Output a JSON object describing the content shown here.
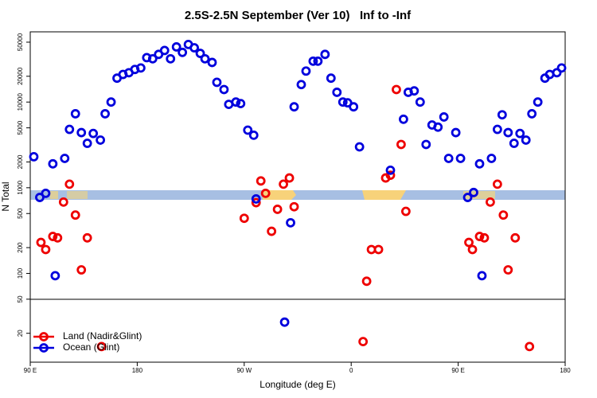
{
  "chart_data": {
    "type": "scatter",
    "title": "2.5S-2.5N September (Ver 10)   Inf to -Inf",
    "x_label": "Longitude (deg E)",
    "y_label": "N Total",
    "log_y": true,
    "legend": "bottom-left",
    "xlim": [
      90,
      540
    ],
    "xticks": [
      {
        "value": 90,
        "label": "90 E"
      },
      180,
      {
        "value": 270,
        "label": "90 W"
      },
      {
        "value": 360,
        "label": "0"
      },
      {
        "value": 450,
        "label": "90 E"
      },
      {
        "value": 540,
        "label": "180"
      }
    ],
    "ylim": [
      9.2,
      66000
    ],
    "yticks": [
      20,
      50,
      100,
      200,
      500,
      1000,
      2000,
      5000,
      10000,
      20000,
      50000
    ],
    "series": [
      {
        "name": "Land (Nadir&Glint)",
        "color": "#ee0000",
        "x": [
          99,
          103,
          109,
          113,
          118,
          123,
          128,
          133,
          138,
          150,
          270,
          280,
          284,
          288,
          293,
          298,
          303,
          308,
          312,
          370,
          373,
          377,
          383,
          389,
          393,
          398,
          402,
          406,
          459,
          462,
          468,
          472,
          477,
          483,
          488,
          492,
          498,
          510
        ],
        "values": [
          230,
          190,
          270,
          260,
          680,
          1100,
          480,
          110,
          260,
          14,
          440,
          670,
          1200,
          860,
          310,
          560,
          1100,
          1300,
          600,
          16,
          81,
          190,
          190,
          1300,
          1400,
          14000,
          3200,
          530,
          230,
          190,
          270,
          260,
          680,
          1100,
          480,
          110,
          260,
          14
        ]
      },
      {
        "name": "Ocean (Glint)",
        "color": "#0000dd",
        "x": [
          93,
          98,
          103,
          109,
          111,
          119,
          123,
          128,
          133,
          138,
          143,
          149,
          153,
          158,
          163,
          168,
          173,
          178,
          183,
          188,
          193,
          198,
          203,
          208,
          213,
          218,
          223,
          228,
          233,
          237,
          243,
          247,
          253,
          257,
          263,
          267,
          273,
          278,
          280,
          304,
          309,
          312,
          318,
          322,
          328,
          332,
          338,
          343,
          348,
          353,
          357,
          362,
          367,
          393,
          404,
          408,
          413,
          418,
          423,
          428,
          433,
          438,
          442,
          448,
          452,
          458,
          463,
          468,
          470,
          478,
          483,
          487,
          492,
          497,
          502,
          507,
          512,
          517,
          523,
          527,
          533,
          537
        ],
        "values": [
          2300,
          770,
          860,
          1900,
          94,
          2200,
          4800,
          7300,
          4400,
          3300,
          4300,
          3600,
          7300,
          10000,
          19000,
          21000,
          22000,
          24000,
          25000,
          33000,
          32000,
          36000,
          40000,
          32000,
          44000,
          38000,
          47000,
          43000,
          37000,
          32000,
          29000,
          17000,
          14000,
          9400,
          10000,
          9600,
          4700,
          4100,
          740,
          27,
          390,
          8800,
          16000,
          23000,
          30000,
          30000,
          36000,
          19000,
          13000,
          10000,
          9800,
          8800,
          3000,
          1600,
          6300,
          13000,
          13500,
          10000,
          3200,
          5400,
          5100,
          6700,
          2200,
          4400,
          2200,
          770,
          880,
          1900,
          94,
          2200,
          4800,
          7100,
          4400,
          3300,
          4300,
          3600,
          7300,
          10000,
          19000,
          21000,
          22000,
          25000
        ]
      }
    ]
  }
}
